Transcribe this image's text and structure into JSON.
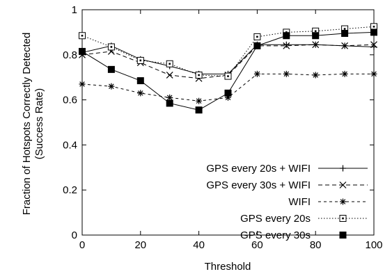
{
  "chart_data": {
    "type": "line",
    "title": "",
    "xlabel": "Threshold",
    "ylabel_lines": [
      "Fraction of Hotspots Correctly Detected",
      "(Success Rate)"
    ],
    "xlim": [
      0,
      100
    ],
    "ylim": [
      0,
      1
    ],
    "xticks": [
      0,
      20,
      40,
      60,
      80,
      100
    ],
    "yticks": [
      0,
      0.2,
      0.4,
      0.6,
      0.8,
      1
    ],
    "xtick_labels": [
      "0",
      "20",
      "40",
      "60",
      "80",
      "100"
    ],
    "ytick_labels": [
      "0",
      "0.2",
      "0.4",
      "0.6",
      "0.8",
      "1"
    ],
    "grid": false,
    "legend_position": "bottom-right",
    "x": [
      0,
      10,
      20,
      30,
      40,
      50,
      60,
      70,
      80,
      90,
      100
    ],
    "series": [
      {
        "name": "GPS every 20s + WIFI",
        "marker": "plus",
        "dash": "solid",
        "values": [
          0.81,
          0.84,
          0.78,
          0.75,
          0.715,
          0.715,
          0.845,
          0.845,
          0.845,
          0.84,
          0.835
        ]
      },
      {
        "name": "GPS every 30s + WIFI",
        "marker": "cross",
        "dash": "dashed",
        "values": [
          0.8,
          0.815,
          0.765,
          0.71,
          0.695,
          0.71,
          0.84,
          0.84,
          0.845,
          0.84,
          0.845
        ]
      },
      {
        "name": "WIFI",
        "marker": "star",
        "dash": "shortdash",
        "values": [
          0.67,
          0.66,
          0.63,
          0.61,
          0.595,
          0.61,
          0.715,
          0.715,
          0.71,
          0.715,
          0.715
        ]
      },
      {
        "name": "GPS every 20s",
        "marker": "open-square",
        "dash": "dotted",
        "values": [
          0.885,
          0.835,
          0.775,
          0.76,
          0.71,
          0.705,
          0.88,
          0.9,
          0.905,
          0.915,
          0.925
        ]
      },
      {
        "name": "GPS every 30s",
        "marker": "filled-square",
        "dash": "solid",
        "values": [
          0.815,
          0.735,
          0.685,
          0.585,
          0.555,
          0.63,
          0.84,
          0.885,
          0.885,
          0.895,
          0.9
        ]
      }
    ]
  }
}
